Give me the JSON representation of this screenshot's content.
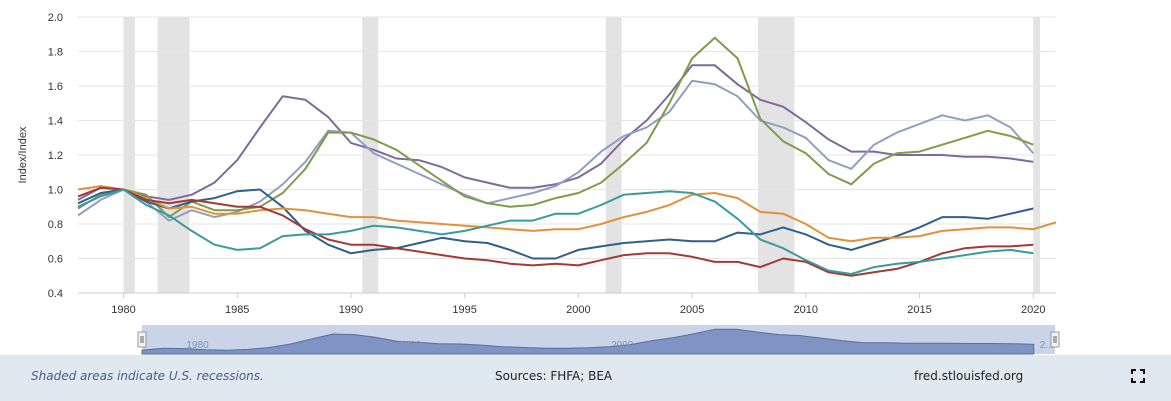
{
  "chart_data": {
    "type": "line",
    "ylabel": "Index/Index",
    "xlim": [
      1978,
      2021
    ],
    "ylim": [
      0.4,
      2.0
    ],
    "y_ticks": [
      "0.4",
      "0.6",
      "0.8",
      "1.0",
      "1.2",
      "1.4",
      "1.6",
      "1.8",
      "2.0"
    ],
    "x_ticks": [
      "1980",
      "1985",
      "1990",
      "1995",
      "2000",
      "2005",
      "2010",
      "2015",
      "2020"
    ],
    "navigator_ticks": [
      "1980",
      "1990",
      "2000",
      "2010",
      "2..."
    ],
    "recessions": [
      [
        1980.0,
        1980.5
      ],
      [
        1981.5,
        1982.9
      ],
      [
        1990.5,
        1991.2
      ],
      [
        2001.2,
        2001.9
      ],
      [
        2007.9,
        2009.5
      ],
      [
        2020.0,
        2020.3
      ]
    ],
    "series": [
      {
        "color": "#7f6a9c",
        "x": [
          1978,
          1979,
          1980,
          1981,
          1982,
          1983,
          1984,
          1985,
          1986,
          1987,
          1988,
          1989,
          1990,
          1991,
          1992,
          1993,
          1994,
          1995,
          1996,
          1997,
          1998,
          1999,
          2000,
          2001,
          2002,
          2003,
          2004,
          2005,
          2006,
          2007,
          2008,
          2009,
          2010,
          2011,
          2012,
          2013,
          2014,
          2015,
          2016,
          2017,
          2018,
          2019,
          2020
        ],
        "y": [
          0.94,
          1.01,
          1.0,
          0.96,
          0.94,
          0.97,
          1.04,
          1.17,
          1.36,
          1.54,
          1.52,
          1.42,
          1.27,
          1.23,
          1.18,
          1.17,
          1.13,
          1.07,
          1.04,
          1.01,
          1.01,
          1.03,
          1.07,
          1.15,
          1.29,
          1.4,
          1.55,
          1.72,
          1.72,
          1.61,
          1.52,
          1.48,
          1.39,
          1.29,
          1.22,
          1.22,
          1.2,
          1.2,
          1.2,
          1.19,
          1.19,
          1.18,
          1.16
        ]
      },
      {
        "color": "#8e9fc3",
        "x": [
          1978,
          1979,
          1980,
          1981,
          1982,
          1983,
          1984,
          1985,
          1986,
          1987,
          1988,
          1989,
          1990,
          1991,
          1992,
          1993,
          1994,
          1995,
          1996,
          1997,
          1998,
          1999,
          2000,
          2001,
          2002,
          2003,
          2004,
          2005,
          2006,
          2007,
          2008,
          2009,
          2010,
          2011,
          2012,
          2013,
          2014,
          2015,
          2016,
          2017,
          2018,
          2019,
          2020
        ],
        "y": [
          0.85,
          0.94,
          1.0,
          0.93,
          0.82,
          0.88,
          0.84,
          0.87,
          0.93,
          1.03,
          1.16,
          1.34,
          1.33,
          1.21,
          1.15,
          1.09,
          1.03,
          0.97,
          0.92,
          0.95,
          0.98,
          1.02,
          1.1,
          1.22,
          1.31,
          1.36,
          1.45,
          1.63,
          1.61,
          1.54,
          1.4,
          1.36,
          1.3,
          1.17,
          1.12,
          1.26,
          1.33,
          1.38,
          1.43,
          1.4,
          1.43,
          1.36,
          1.21
        ]
      },
      {
        "color": "#7f9c4a",
        "x": [
          1978,
          1979,
          1980,
          1981,
          1982,
          1983,
          1984,
          1985,
          1986,
          1987,
          1988,
          1989,
          1990,
          1991,
          1992,
          1993,
          1994,
          1995,
          1996,
          1997,
          1998,
          1999,
          2000,
          2001,
          2002,
          2003,
          2004,
          2005,
          2006,
          2007,
          2008,
          2009,
          2010,
          2011,
          2012,
          2013,
          2014,
          2015,
          2016,
          2017,
          2018,
          2019,
          2020
        ],
        "y": [
          0.89,
          0.97,
          1.0,
          0.97,
          0.84,
          0.93,
          0.88,
          0.88,
          0.9,
          0.98,
          1.12,
          1.33,
          1.33,
          1.29,
          1.23,
          1.14,
          1.05,
          0.96,
          0.92,
          0.9,
          0.91,
          0.95,
          0.98,
          1.04,
          1.15,
          1.27,
          1.5,
          1.76,
          1.88,
          1.76,
          1.41,
          1.28,
          1.21,
          1.09,
          1.03,
          1.15,
          1.21,
          1.22,
          1.26,
          1.3,
          1.34,
          1.31,
          1.26
        ]
      },
      {
        "color": "#2f5f8a",
        "x": [
          1978,
          1979,
          1980,
          1981,
          1982,
          1983,
          1984,
          1985,
          1986,
          1987,
          1988,
          1989,
          1990,
          1991,
          1992,
          1993,
          1994,
          1995,
          1996,
          1997,
          1998,
          1999,
          2000,
          2001,
          2002,
          2003,
          2004,
          2005,
          2006,
          2007,
          2008,
          2009,
          2010,
          2011,
          2012,
          2013,
          2014,
          2015,
          2016,
          2017,
          2018,
          2019,
          2020
        ],
        "y": [
          0.92,
          0.98,
          1.0,
          0.93,
          0.89,
          0.93,
          0.95,
          0.99,
          1.0,
          0.9,
          0.76,
          0.68,
          0.63,
          0.65,
          0.66,
          0.69,
          0.72,
          0.7,
          0.69,
          0.65,
          0.6,
          0.6,
          0.65,
          0.67,
          0.69,
          0.7,
          0.71,
          0.7,
          0.7,
          0.75,
          0.74,
          0.78,
          0.74,
          0.68,
          0.65,
          0.69,
          0.73,
          0.78,
          0.84,
          0.84,
          0.83,
          0.86,
          0.89
        ]
      },
      {
        "color": "#e0913a",
        "x": [
          1978,
          1979,
          1980,
          1981,
          1982,
          1983,
          1984,
          1985,
          1986,
          1987,
          1988,
          1989,
          1990,
          1991,
          1992,
          1993,
          1994,
          1995,
          1996,
          1997,
          1998,
          1999,
          2000,
          2001,
          2002,
          2003,
          2004,
          2005,
          2006,
          2007,
          2008,
          2009,
          2010,
          2011,
          2012,
          2013,
          2014,
          2015,
          2016,
          2017,
          2018,
          2019,
          2020,
          2021
        ],
        "y": [
          1.0,
          1.02,
          1.0,
          0.95,
          0.89,
          0.9,
          0.86,
          0.86,
          0.88,
          0.89,
          0.88,
          0.86,
          0.84,
          0.84,
          0.82,
          0.81,
          0.8,
          0.79,
          0.78,
          0.77,
          0.76,
          0.77,
          0.77,
          0.8,
          0.84,
          0.87,
          0.91,
          0.97,
          0.98,
          0.95,
          0.87,
          0.86,
          0.8,
          0.72,
          0.7,
          0.72,
          0.72,
          0.73,
          0.76,
          0.77,
          0.78,
          0.78,
          0.77,
          0.81
        ]
      },
      {
        "color": "#a33a33",
        "x": [
          1978,
          1979,
          1980,
          1981,
          1982,
          1983,
          1984,
          1985,
          1986,
          1987,
          1988,
          1989,
          1990,
          1991,
          1992,
          1993,
          1994,
          1995,
          1996,
          1997,
          1998,
          1999,
          2000,
          2001,
          2002,
          2003,
          2004,
          2005,
          2006,
          2007,
          2008,
          2009,
          2010,
          2011,
          2012,
          2013,
          2014,
          2015,
          2016,
          2017,
          2018,
          2019,
          2020
        ],
        "y": [
          0.96,
          1.01,
          1.0,
          0.94,
          0.92,
          0.94,
          0.92,
          0.9,
          0.9,
          0.85,
          0.77,
          0.71,
          0.68,
          0.68,
          0.66,
          0.64,
          0.62,
          0.6,
          0.59,
          0.57,
          0.56,
          0.57,
          0.56,
          0.59,
          0.62,
          0.63,
          0.63,
          0.61,
          0.58,
          0.58,
          0.55,
          0.6,
          0.58,
          0.52,
          0.5,
          0.52,
          0.54,
          0.58,
          0.63,
          0.66,
          0.67,
          0.67,
          0.68
        ]
      },
      {
        "color": "#3a9a9c",
        "x": [
          1978,
          1979,
          1980,
          1981,
          1982,
          1983,
          1984,
          1985,
          1986,
          1987,
          1988,
          1989,
          1990,
          1991,
          1992,
          1993,
          1994,
          1995,
          1996,
          1997,
          1998,
          1999,
          2000,
          2001,
          2002,
          2003,
          2004,
          2005,
          2006,
          2007,
          2008,
          2009,
          2010,
          2011,
          2012,
          2013,
          2014,
          2015,
          2016,
          2017,
          2018,
          2019,
          2020
        ],
        "y": [
          0.9,
          0.96,
          1.0,
          0.91,
          0.85,
          0.76,
          0.68,
          0.65,
          0.66,
          0.73,
          0.74,
          0.74,
          0.76,
          0.79,
          0.78,
          0.76,
          0.74,
          0.76,
          0.79,
          0.82,
          0.82,
          0.86,
          0.86,
          0.91,
          0.97,
          0.98,
          0.99,
          0.98,
          0.93,
          0.83,
          0.71,
          0.66,
          0.59,
          0.53,
          0.51,
          0.55,
          0.57,
          0.58,
          0.6,
          0.62,
          0.64,
          0.65,
          0.63
        ]
      }
    ]
  },
  "footer": {
    "note": "Shaded areas indicate U.S. recessions.",
    "sources": "Sources: FHFA; BEA",
    "site": "fred.stlouisfed.org"
  },
  "icons": {
    "expand": "expand-icon"
  }
}
